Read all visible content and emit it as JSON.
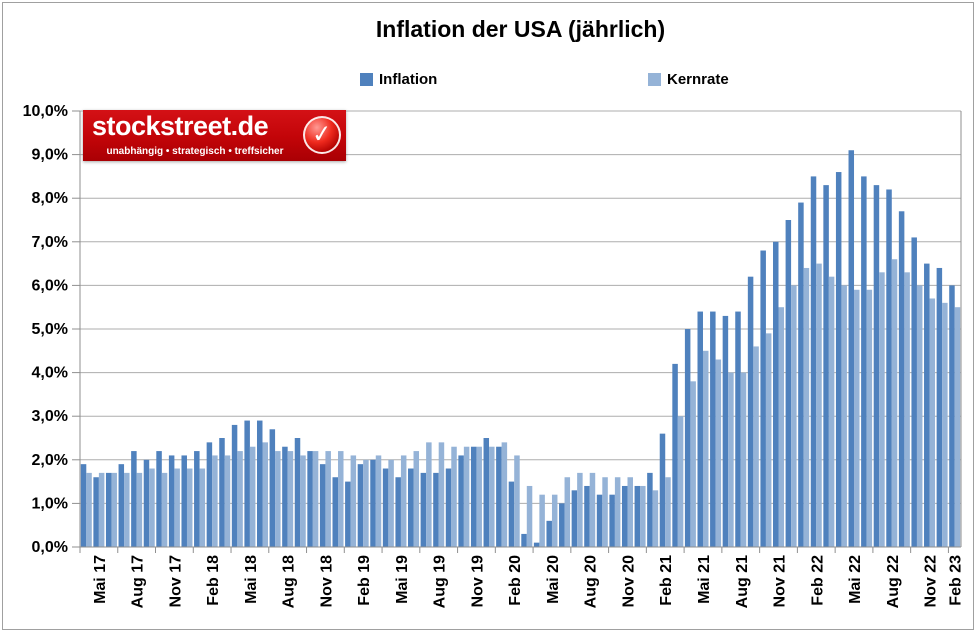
{
  "title": "Inflation der USA (jährlich)",
  "legend": [
    {
      "label": "Inflation",
      "color": "#4F81BD"
    },
    {
      "label": "Kernrate",
      "color": "#95B3D7"
    }
  ],
  "logo": {
    "text": "stockstreet.de",
    "tagline": "unabhängig • strategisch • treffsicher",
    "background": "#C20408",
    "check_icon": "✓"
  },
  "chart_data": {
    "type": "bar",
    "title": "Inflation der USA (jährlich)",
    "xlabel": "",
    "ylabel": "",
    "ylim": [
      0,
      10
    ],
    "grid": "horizontal",
    "legend_position": "top",
    "y_tick_labels": [
      "0,0%",
      "1,0%",
      "2,0%",
      "3,0%",
      "4,0%",
      "5,0%",
      "6,0%",
      "7,0%",
      "8,0%",
      "9,0%",
      "10,0%"
    ],
    "x_tick_labels": [
      "Mai 17",
      "Aug 17",
      "Nov 17",
      "Feb 18",
      "Mai 18",
      "Aug 18",
      "Nov 18",
      "Feb 19",
      "Mai 19",
      "Aug 19",
      "Nov 19",
      "Feb 20",
      "Mai 20",
      "Aug 20",
      "Nov 20",
      "Feb 21",
      "Mai 21",
      "Aug 21",
      "Nov 21",
      "Feb 22",
      "Mai 22",
      "Aug 22",
      "Nov 22",
      "Feb 23"
    ],
    "x_label_interval": 3,
    "categories": [
      "Mai 17",
      "Jun 17",
      "Jul 17",
      "Aug 17",
      "Sep 17",
      "Okt 17",
      "Nov 17",
      "Dez 17",
      "Jan 18",
      "Feb 18",
      "Mär 18",
      "Apr 18",
      "Mai 18",
      "Jun 18",
      "Jul 18",
      "Aug 18",
      "Sep 18",
      "Okt 18",
      "Nov 18",
      "Dez 18",
      "Jan 19",
      "Feb 19",
      "Mär 19",
      "Apr 19",
      "Mai 19",
      "Jun 19",
      "Jul 19",
      "Aug 19",
      "Sep 19",
      "Okt 19",
      "Nov 19",
      "Dez 19",
      "Jan 20",
      "Feb 20",
      "Mär 20",
      "Apr 20",
      "Mai 20",
      "Jun 20",
      "Jul 20",
      "Aug 20",
      "Sep 20",
      "Okt 20",
      "Nov 20",
      "Dez 20",
      "Jan 21",
      "Feb 21",
      "Mär 21",
      "Apr 21",
      "Mai 21",
      "Jun 21",
      "Jul 21",
      "Aug 21",
      "Sep 21",
      "Okt 21",
      "Nov 21",
      "Dez 21",
      "Jan 22",
      "Feb 22",
      "Mär 22",
      "Apr 22",
      "Mai 22",
      "Jun 22",
      "Jul 22",
      "Aug 22",
      "Sep 22",
      "Okt 22",
      "Nov 22",
      "Dez 22",
      "Jan 23",
      "Feb 23"
    ],
    "series": [
      {
        "name": "Inflation",
        "color": "#4F81BD",
        "values": [
          1.9,
          1.6,
          1.7,
          1.9,
          2.2,
          2.0,
          2.2,
          2.1,
          2.1,
          2.2,
          2.4,
          2.5,
          2.8,
          2.9,
          2.9,
          2.7,
          2.3,
          2.5,
          2.2,
          1.9,
          1.6,
          1.5,
          1.9,
          2.0,
          1.8,
          1.6,
          1.8,
          1.7,
          1.7,
          1.8,
          2.1,
          2.3,
          2.5,
          2.3,
          1.5,
          0.3,
          0.1,
          0.6,
          1.0,
          1.3,
          1.4,
          1.2,
          1.2,
          1.4,
          1.4,
          1.7,
          2.6,
          4.2,
          5.0,
          5.4,
          5.4,
          5.3,
          5.4,
          6.2,
          6.8,
          7.0,
          7.5,
          7.9,
          8.5,
          8.3,
          8.6,
          9.1,
          8.5,
          8.3,
          8.2,
          7.7,
          7.1,
          6.5,
          6.4,
          6.0
        ]
      },
      {
        "name": "Kernrate",
        "color": "#95B3D7",
        "values": [
          1.7,
          1.7,
          1.7,
          1.7,
          1.7,
          1.8,
          1.7,
          1.8,
          1.8,
          1.8,
          2.1,
          2.1,
          2.2,
          2.3,
          2.4,
          2.2,
          2.2,
          2.1,
          2.2,
          2.2,
          2.2,
          2.1,
          2.0,
          2.1,
          2.0,
          2.1,
          2.2,
          2.4,
          2.4,
          2.3,
          2.3,
          2.3,
          2.3,
          2.4,
          2.1,
          1.4,
          1.2,
          1.2,
          1.6,
          1.7,
          1.7,
          1.6,
          1.6,
          1.6,
          1.4,
          1.3,
          1.6,
          3.0,
          3.8,
          4.5,
          4.3,
          4.0,
          4.0,
          4.6,
          4.9,
          5.5,
          6.0,
          6.4,
          6.5,
          6.2,
          6.0,
          5.9,
          5.9,
          6.3,
          6.6,
          6.3,
          6.0,
          5.7,
          5.6,
          5.5
        ]
      }
    ],
    "colors": {
      "gridline": "#adadad",
      "axis": "#8f8f8f",
      "text": "#000000"
    }
  }
}
